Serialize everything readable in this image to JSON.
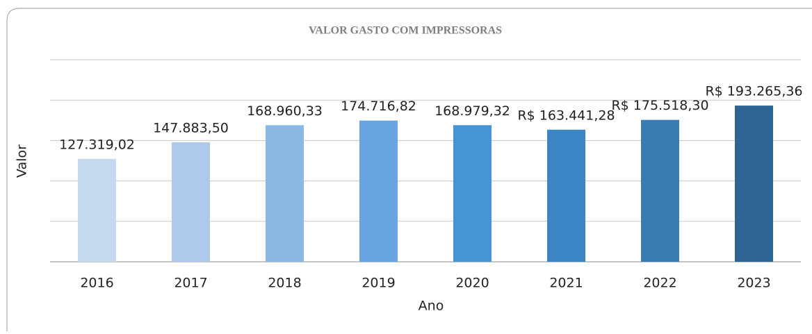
{
  "chart_data": {
    "type": "bar",
    "title": "VALOR GASTO COM IMPRESSORAS",
    "x_label": "Ano",
    "y_label": "Valor",
    "categories": [
      "2016",
      "2017",
      "2018",
      "2019",
      "2020",
      "2021",
      "2022",
      "2023"
    ],
    "values": [
      127319.02,
      147883.5,
      168960.33,
      174716.82,
      168979.32,
      163441.28,
      175518.3,
      193265.36
    ],
    "value_labels": [
      "127.319,02",
      "147.883,50",
      "168.960,33",
      "174.716,82",
      "168.979,32",
      "R$ 163.441,28",
      "R$ 175.518,30",
      "R$ 193.265,36"
    ],
    "colors": [
      "#c5d8f0",
      "#adc9eb",
      "#8db8e3",
      "#67a5e0",
      "#4694d6",
      "#3d86c6",
      "#3a7bb2",
      "#2e6594"
    ],
    "ylim": [
      0,
      250000
    ],
    "yticks": [
      0,
      50000,
      100000,
      150000,
      200000,
      250000
    ],
    "grid": true
  }
}
